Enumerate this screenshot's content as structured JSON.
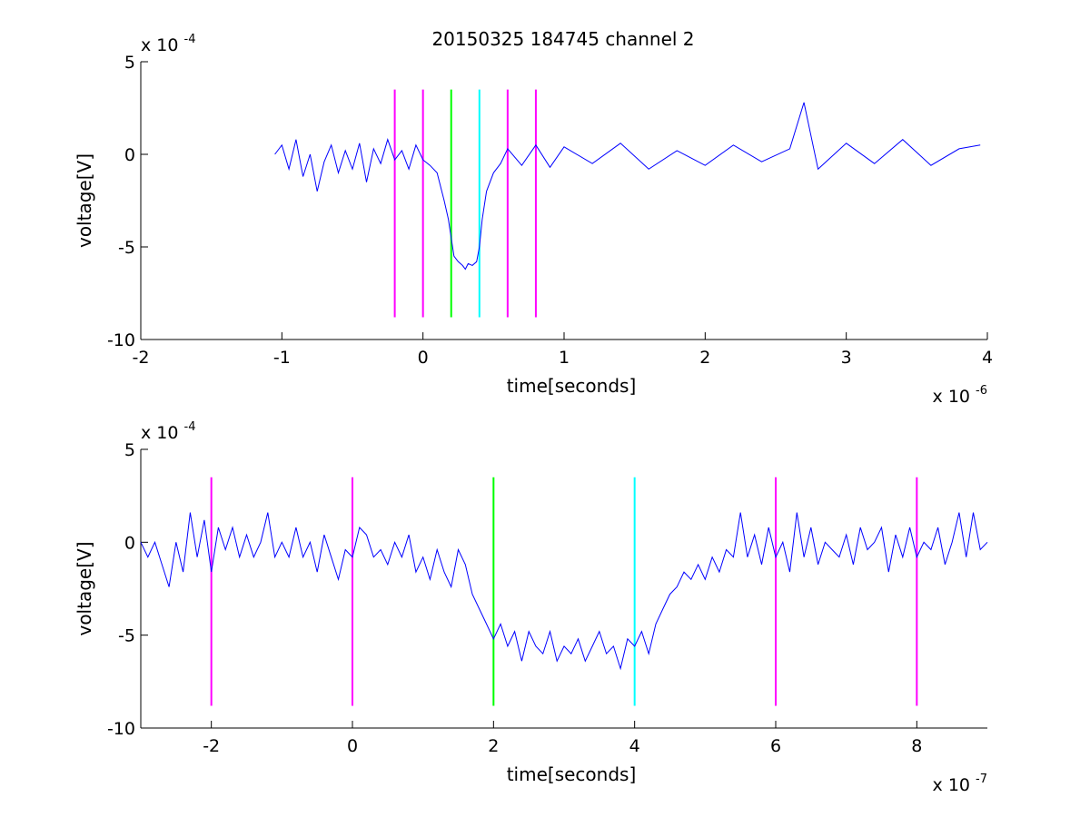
{
  "title": "20150325 184745 channel 2",
  "colors": {
    "signal": "#0000ff",
    "marker_magenta": "#ff00ff",
    "marker_green": "#00ff00",
    "marker_cyan": "#00ffff",
    "axis": "#000000",
    "background": "#ffffff"
  },
  "chart_data": [
    {
      "type": "line",
      "title": "20150325 184745 channel 2",
      "xlabel": "time[seconds]",
      "ylabel": "voltage[V]",
      "x_exponent_label": "x 10",
      "x_exponent": "-6",
      "y_exponent_label": "x 10",
      "y_exponent": "-4",
      "x_scale": 1e-06,
      "y_scale": 0.0001,
      "xlim": [
        -2,
        4
      ],
      "ylim": [
        -10,
        5
      ],
      "xticks": [
        -2,
        -1,
        0,
        1,
        2,
        3,
        4
      ],
      "xtick_labels": [
        "-2",
        "-1",
        "0",
        "1",
        "2",
        "3",
        "4"
      ],
      "yticks": [
        5,
        0,
        -5,
        -10
      ],
      "ytick_labels": [
        "5",
        "0",
        "-5",
        "-10"
      ],
      "grid": false,
      "legend": "none",
      "vertical_markers": [
        {
          "x": -0.2,
          "color": "magenta",
          "y_range": [
            -8.8,
            3.5
          ]
        },
        {
          "x": 0.0,
          "color": "magenta",
          "y_range": [
            -8.8,
            3.5
          ]
        },
        {
          "x": 0.2,
          "color": "green",
          "y_range": [
            -8.8,
            3.5
          ]
        },
        {
          "x": 0.4,
          "color": "cyan",
          "y_range": [
            -8.8,
            3.5
          ]
        },
        {
          "x": 0.6,
          "color": "magenta",
          "y_range": [
            -8.8,
            3.5
          ]
        },
        {
          "x": 0.8,
          "color": "magenta",
          "y_range": [
            -8.8,
            3.5
          ]
        }
      ],
      "series": [
        {
          "color": "blue",
          "x": [
            -1.05,
            -1.0,
            -0.95,
            -0.9,
            -0.85,
            -0.8,
            -0.75,
            -0.7,
            -0.65,
            -0.6,
            -0.55,
            -0.5,
            -0.45,
            -0.4,
            -0.35,
            -0.3,
            -0.25,
            -0.2,
            -0.15,
            -0.1,
            -0.05,
            0.0,
            0.05,
            0.1,
            0.15,
            0.18,
            0.2,
            0.22,
            0.25,
            0.28,
            0.3,
            0.32,
            0.35,
            0.38,
            0.4,
            0.42,
            0.45,
            0.5,
            0.55,
            0.6,
            0.7,
            0.8,
            0.9,
            1.0,
            1.2,
            1.4,
            1.6,
            1.8,
            2.0,
            2.2,
            2.4,
            2.6,
            2.7,
            2.8,
            3.0,
            3.2,
            3.4,
            3.6,
            3.8,
            3.95
          ],
          "y": [
            0.0,
            0.5,
            -0.8,
            0.8,
            -1.2,
            0.0,
            -2.0,
            -0.4,
            0.5,
            -1.0,
            0.2,
            -0.8,
            0.6,
            -1.5,
            0.3,
            -0.5,
            0.8,
            -0.3,
            0.2,
            -0.8,
            0.5,
            -0.3,
            -0.6,
            -1.0,
            -2.5,
            -3.5,
            -4.5,
            -5.5,
            -5.8,
            -6.0,
            -6.2,
            -5.9,
            -6.0,
            -5.8,
            -5.0,
            -3.5,
            -2.0,
            -1.0,
            -0.5,
            0.3,
            -0.6,
            0.5,
            -0.7,
            0.4,
            -0.5,
            0.6,
            -0.8,
            0.2,
            -0.6,
            0.5,
            -0.4,
            0.3,
            2.8,
            -0.8,
            0.6,
            -0.5,
            0.8,
            -0.6,
            0.3,
            0.5
          ]
        }
      ]
    },
    {
      "type": "line",
      "xlabel": "time[seconds]",
      "ylabel": "voltage[V]",
      "x_exponent_label": "x 10",
      "x_exponent": "-7",
      "y_exponent_label": "x 10",
      "y_exponent": "-4",
      "x_scale": 1e-07,
      "y_scale": 0.0001,
      "xlim": [
        -3,
        9
      ],
      "ylim": [
        -10,
        5
      ],
      "xticks": [
        -2,
        0,
        2,
        4,
        6,
        8
      ],
      "xtick_labels": [
        "-2",
        "0",
        "2",
        "4",
        "6",
        "8"
      ],
      "yticks": [
        5,
        0,
        -5,
        -10
      ],
      "ytick_labels": [
        "5",
        "0",
        "-5",
        "-10"
      ],
      "grid": false,
      "legend": "none",
      "vertical_markers": [
        {
          "x": -2,
          "color": "magenta",
          "y_range": [
            -8.8,
            3.5
          ]
        },
        {
          "x": 0,
          "color": "magenta",
          "y_range": [
            -8.8,
            3.5
          ]
        },
        {
          "x": 2,
          "color": "green",
          "y_range": [
            -8.8,
            3.5
          ]
        },
        {
          "x": 4,
          "color": "cyan",
          "y_range": [
            -8.8,
            3.5
          ]
        },
        {
          "x": 6,
          "color": "magenta",
          "y_range": [
            -8.8,
            3.5
          ]
        },
        {
          "x": 8,
          "color": "magenta",
          "y_range": [
            -8.8,
            3.5
          ]
        }
      ],
      "series": [
        {
          "color": "blue",
          "x": [
            -3.0,
            -2.9,
            -2.8,
            -2.7,
            -2.6,
            -2.5,
            -2.4,
            -2.3,
            -2.2,
            -2.1,
            -2.0,
            -1.9,
            -1.8,
            -1.7,
            -1.6,
            -1.5,
            -1.4,
            -1.3,
            -1.2,
            -1.1,
            -1.0,
            -0.9,
            -0.8,
            -0.7,
            -0.6,
            -0.5,
            -0.4,
            -0.3,
            -0.2,
            -0.1,
            0.0,
            0.1,
            0.2,
            0.3,
            0.4,
            0.5,
            0.6,
            0.7,
            0.8,
            0.9,
            1.0,
            1.1,
            1.2,
            1.3,
            1.4,
            1.5,
            1.6,
            1.7,
            1.8,
            1.9,
            2.0,
            2.1,
            2.2,
            2.3,
            2.4,
            2.5,
            2.6,
            2.7,
            2.8,
            2.9,
            3.0,
            3.1,
            3.2,
            3.3,
            3.4,
            3.5,
            3.6,
            3.7,
            3.8,
            3.9,
            4.0,
            4.1,
            4.2,
            4.3,
            4.4,
            4.5,
            4.6,
            4.7,
            4.8,
            4.9,
            5.0,
            5.1,
            5.2,
            5.3,
            5.4,
            5.5,
            5.6,
            5.7,
            5.8,
            5.9,
            6.0,
            6.1,
            6.2,
            6.3,
            6.4,
            6.5,
            6.6,
            6.7,
            6.8,
            6.9,
            7.0,
            7.1,
            7.2,
            7.3,
            7.4,
            7.5,
            7.6,
            7.7,
            7.8,
            7.9,
            8.0,
            8.1,
            8.2,
            8.3,
            8.4,
            8.5,
            8.6,
            8.7,
            8.8,
            8.9,
            9.0
          ],
          "y": [
            0.0,
            -0.8,
            0.0,
            -1.2,
            -2.4,
            0.0,
            -1.6,
            1.6,
            -0.8,
            1.2,
            -1.6,
            0.8,
            -0.4,
            0.8,
            -0.8,
            0.4,
            -0.8,
            0.0,
            1.6,
            -0.8,
            0.0,
            -0.8,
            0.8,
            -0.8,
            0.0,
            -1.6,
            0.4,
            -0.8,
            -2.0,
            -0.4,
            -0.8,
            0.8,
            0.4,
            -0.8,
            -0.4,
            -1.2,
            0.0,
            -0.8,
            0.4,
            -1.6,
            -0.8,
            -2.0,
            -0.4,
            -1.6,
            -2.4,
            -0.4,
            -1.2,
            -2.8,
            -3.6,
            -4.4,
            -5.2,
            -4.4,
            -5.6,
            -4.8,
            -6.4,
            -4.8,
            -5.6,
            -6.0,
            -4.8,
            -6.4,
            -5.6,
            -6.0,
            -5.2,
            -6.4,
            -5.6,
            -4.8,
            -6.0,
            -5.6,
            -6.8,
            -5.2,
            -5.6,
            -4.8,
            -6.0,
            -4.4,
            -3.6,
            -2.8,
            -2.4,
            -1.6,
            -2.0,
            -1.2,
            -2.0,
            -0.8,
            -1.6,
            -0.4,
            -0.8,
            1.6,
            -0.8,
            0.4,
            -1.2,
            0.8,
            -0.8,
            0.0,
            -1.6,
            1.6,
            -0.8,
            0.8,
            -1.2,
            0.0,
            -0.4,
            -0.8,
            0.4,
            -1.2,
            0.8,
            -0.4,
            0.0,
            0.8,
            -1.6,
            0.4,
            -0.8,
            0.8,
            -0.8,
            0.0,
            -0.4,
            0.8,
            -1.2,
            0.0,
            1.6,
            -0.8,
            1.6,
            -0.4,
            0.0
          ]
        }
      ]
    }
  ]
}
